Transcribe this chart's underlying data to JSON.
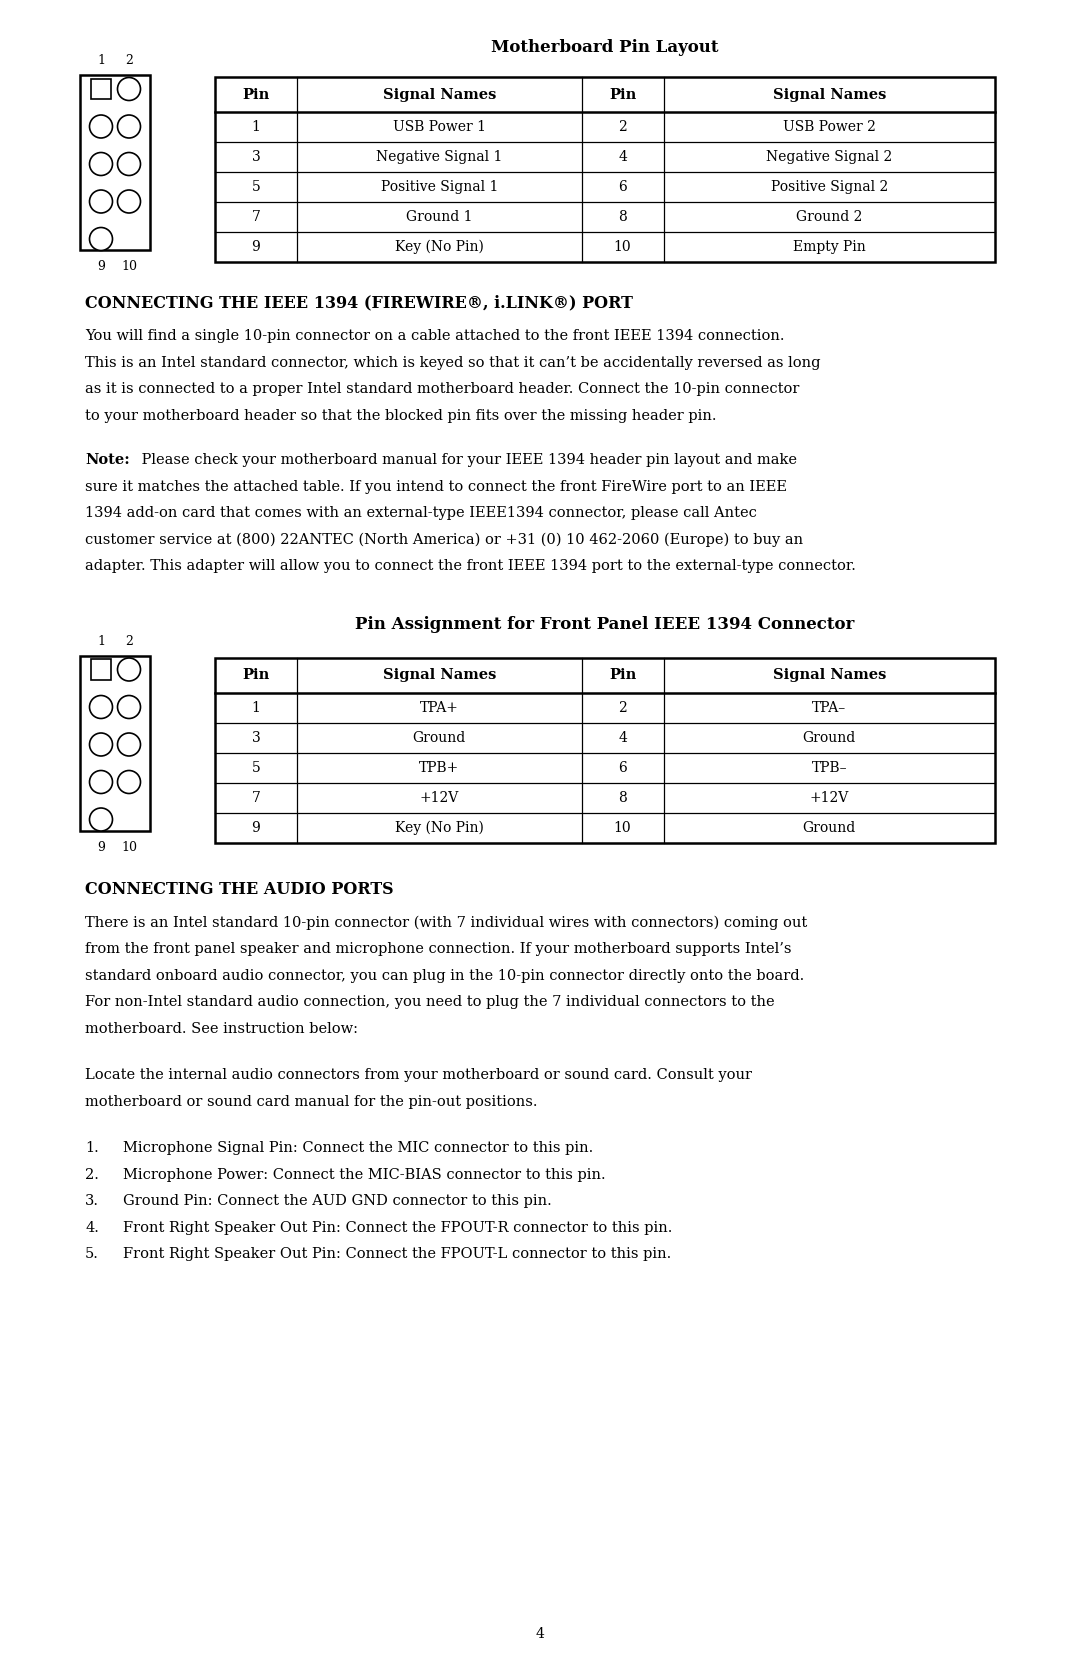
{
  "title1": "Motherboard Pin Layout",
  "table1_headers": [
    "Pin",
    "Signal Names",
    "Pin",
    "Signal Names"
  ],
  "table1_rows": [
    [
      "1",
      "USB Power 1",
      "2",
      "USB Power 2"
    ],
    [
      "3",
      "Negative Signal 1",
      "4",
      "Negative Signal 2"
    ],
    [
      "5",
      "Positive Signal 1",
      "6",
      "Positive Signal 2"
    ],
    [
      "7",
      "Ground 1",
      "8",
      "Ground 2"
    ],
    [
      "9",
      "Key (No Pin)",
      "10",
      "Empty Pin"
    ]
  ],
  "section2_title": "CONNECTING THE IEEE 1394 (FIREWIRE®, i.LINK®) PORT",
  "section2_para1_lines": [
    "You will find a single 10-pin connector on a cable attached to the front IEEE 1394 connection.",
    "This is an Intel standard connector, which is keyed so that it can’t be accidentally reversed as long",
    "as it is connected to a proper Intel standard motherboard header. Connect the 10-pin connector",
    "to your motherboard header so that the blocked pin fits over the missing header pin."
  ],
  "section2_note_bold": "Note:",
  "section2_note_lines": [
    " Please check your motherboard manual for your IEEE 1394 header pin layout and make",
    "sure it matches the attached table. If you intend to connect the front FireWire port to an IEEE",
    "1394 add-on card that comes with an external-type IEEE1394 connector, please call Antec",
    "customer service at (800) 22ANTEC (North America) or +31 (0) 10 462-2060 (Europe) to buy an",
    "adapter. This adapter will allow you to connect the front IEEE 1394 port to the external-type connector."
  ],
  "title2": "Pin Assignment for Front Panel IEEE 1394 Connector",
  "table2_headers": [
    "Pin",
    "Signal Names",
    "Pin",
    "Signal Names"
  ],
  "table2_rows": [
    [
      "1",
      "TPA+",
      "2",
      "TPA–"
    ],
    [
      "3",
      "Ground",
      "4",
      "Ground"
    ],
    [
      "5",
      "TPB+",
      "6",
      "TPB–"
    ],
    [
      "7",
      "+12V",
      "8",
      "+12V"
    ],
    [
      "9",
      "Key (No Pin)",
      "10",
      "Ground"
    ]
  ],
  "section3_title": "CONNECTING THE AUDIO PORTS",
  "section3_para1_lines": [
    "There is an Intel standard 10-pin connector (with 7 individual wires with connectors) coming out",
    "from the front panel speaker and microphone connection. If your motherboard supports Intel’s",
    "standard onboard audio connector, you can plug in the 10-pin connector directly onto the board.",
    "For non-Intel standard audio connection, you need to plug the 7 individual connectors to the",
    "motherboard. See instruction below:"
  ],
  "section3_para2_lines": [
    "Locate the internal audio connectors from your motherboard or sound card. Consult your",
    "motherboard or sound card manual for the pin-out positions."
  ],
  "section3_list": [
    "Microphone Signal Pin: Connect the MIC connector to this pin.",
    "Microphone Power: Connect the MIC-BIAS connector to this pin.",
    "Ground Pin: Connect the AUD GND connector to this pin.",
    "Front Right Speaker Out Pin: Connect the FPOUT-R connector to this pin.",
    "Front Right Speaker Out Pin: Connect the FPOUT-L connector to this pin."
  ],
  "page_number": "4",
  "bg_color": "#ffffff",
  "text_color": "#000000"
}
